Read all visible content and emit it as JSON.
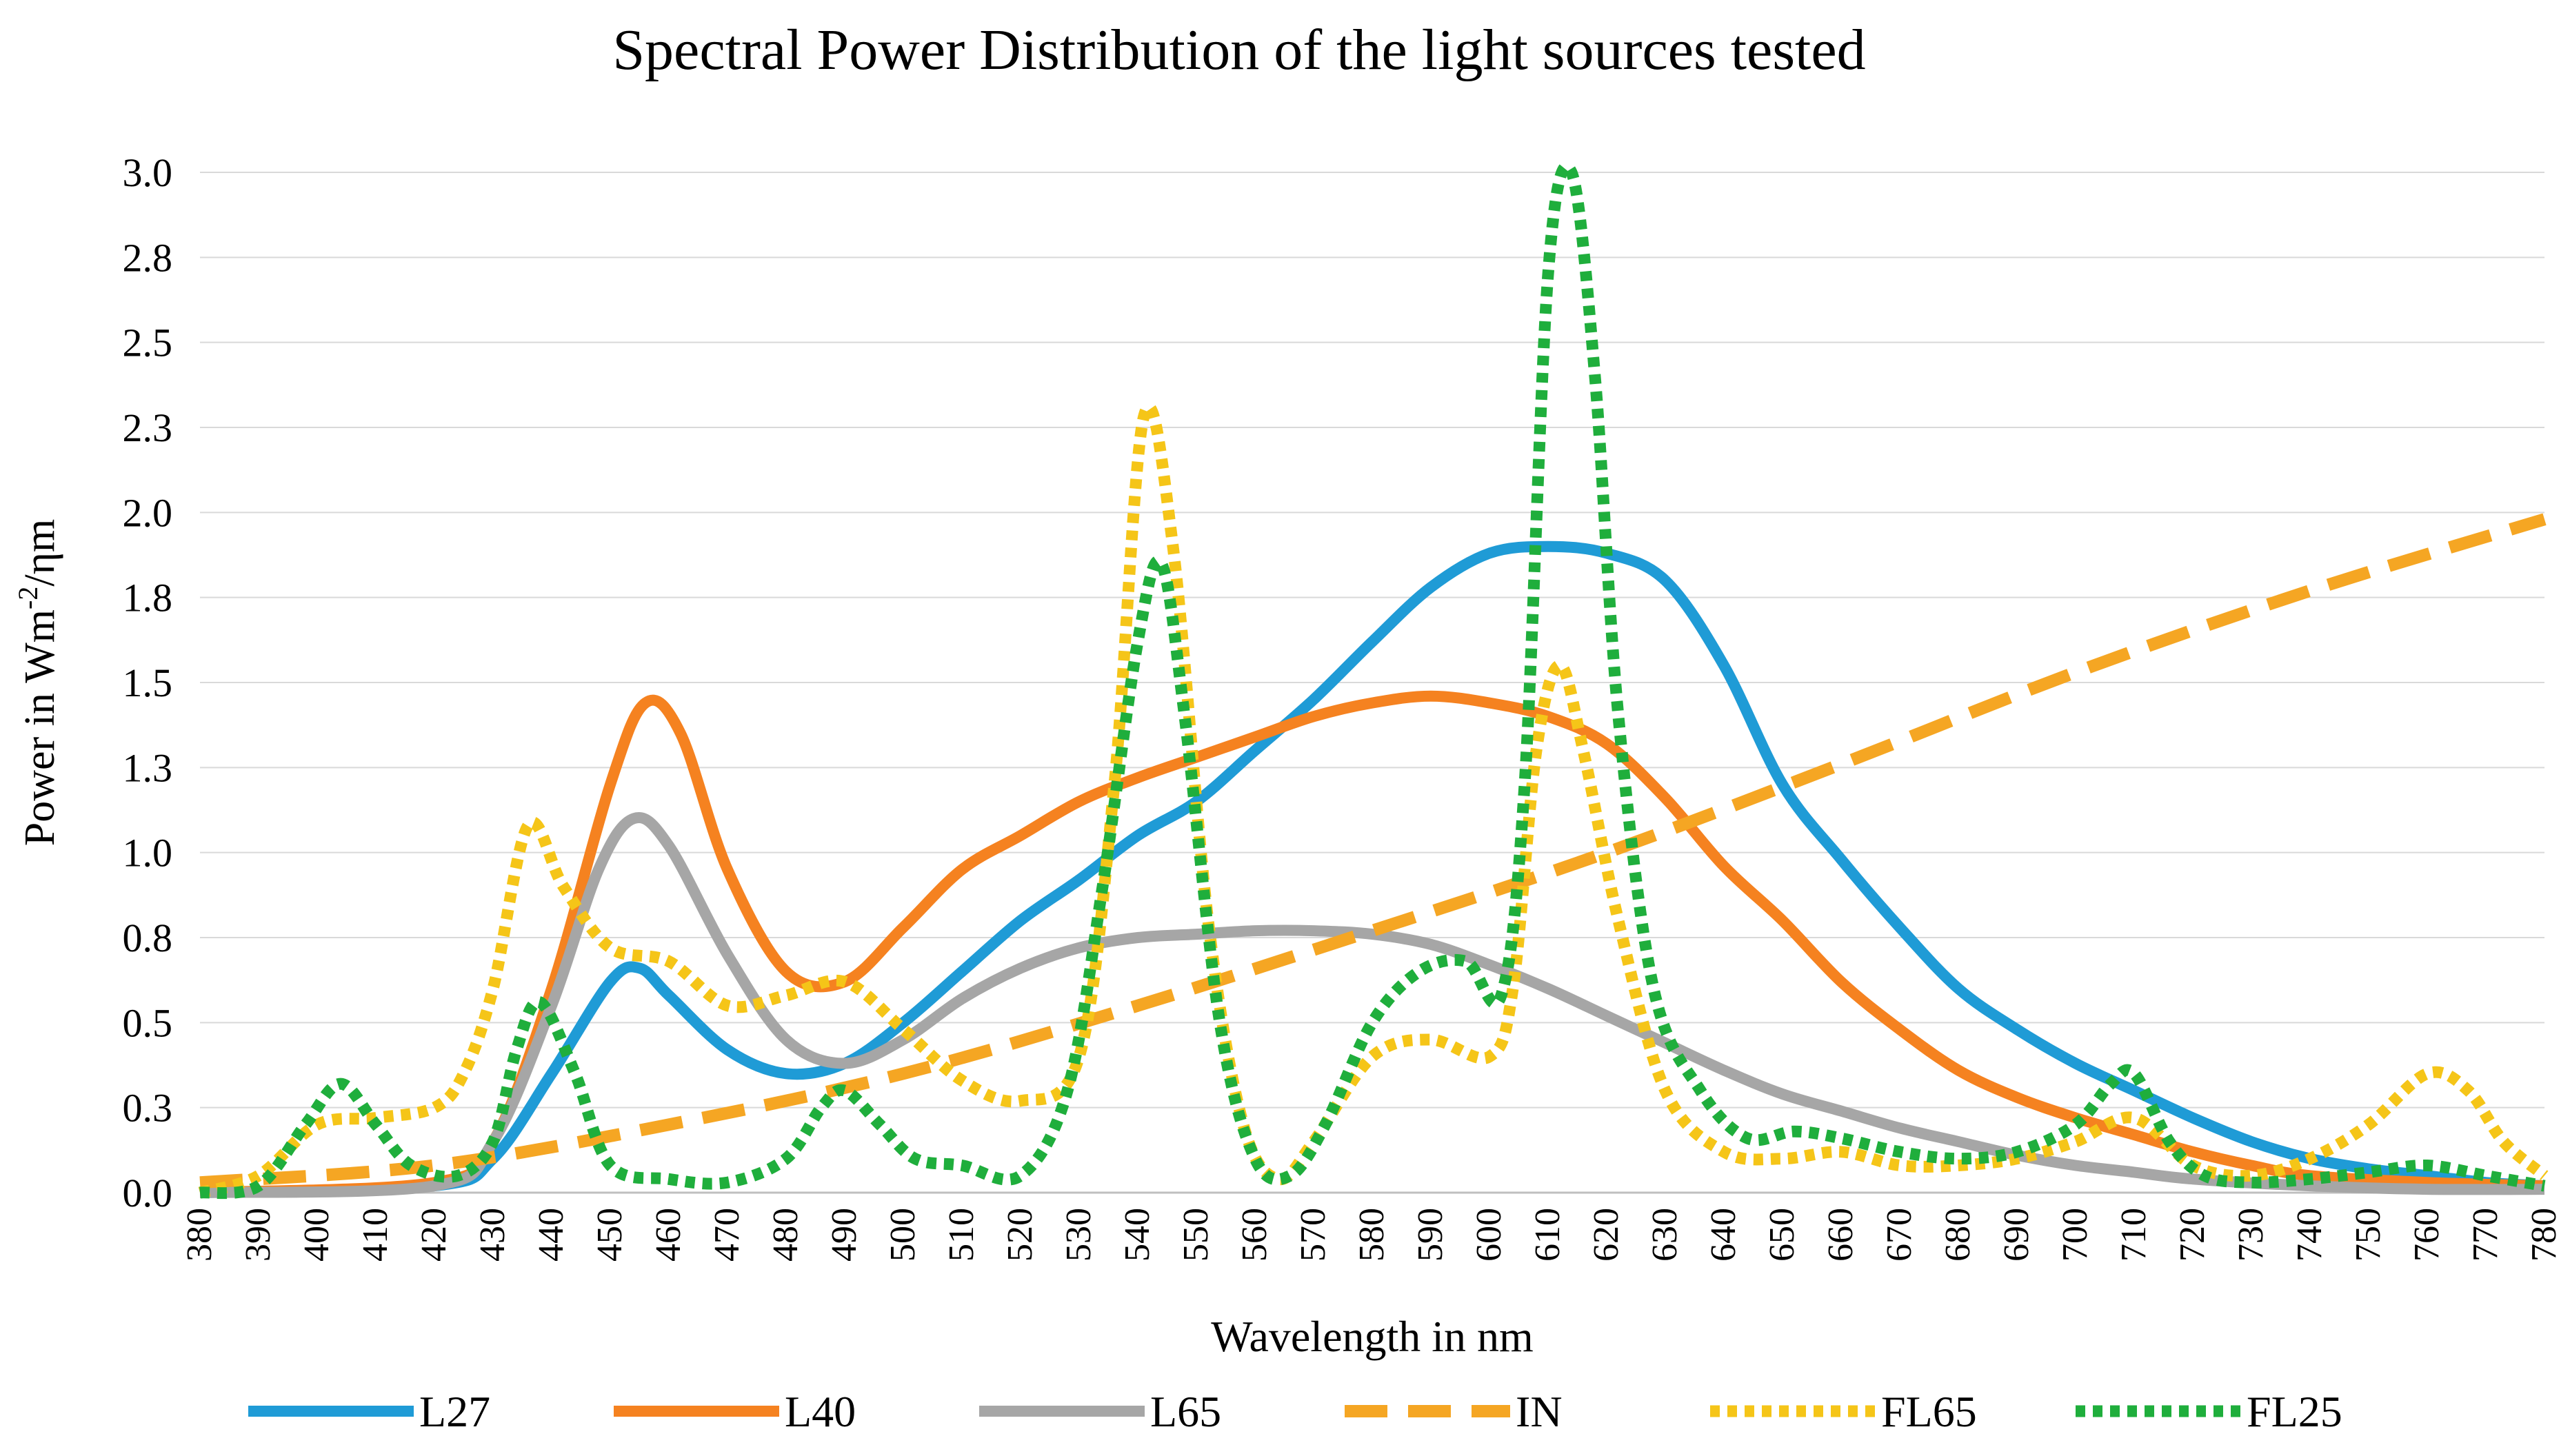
{
  "chart_data": {
    "type": "line",
    "title": "Spectral Power Distribution of the light sources tested",
    "xlabel": "Wavelength in nm",
    "ylabel_parts": {
      "prefix": "Power in Wm",
      "superscript": "-2",
      "suffix": "/ηm"
    },
    "xlim": [
      380,
      780
    ],
    "ylim": [
      0,
      3.0
    ],
    "x_ticks": [
      380,
      390,
      400,
      410,
      420,
      430,
      440,
      450,
      460,
      470,
      480,
      490,
      500,
      510,
      520,
      530,
      540,
      550,
      560,
      570,
      580,
      590,
      600,
      610,
      620,
      630,
      640,
      650,
      660,
      670,
      680,
      690,
      700,
      710,
      720,
      730,
      740,
      750,
      760,
      770,
      780
    ],
    "y_tick_values": [
      0,
      0.25,
      0.5,
      0.75,
      1.0,
      1.25,
      1.5,
      1.75,
      2.0,
      2.25,
      2.5,
      2.75,
      3.0
    ],
    "y_tick_labels": [
      "0.0",
      "0.3",
      "0.5",
      "0.8",
      "1.0",
      "1.3",
      "1.5",
      "1.8",
      "2.0",
      "2.3",
      "2.5",
      "2.8",
      "3.0"
    ],
    "grid": true,
    "legend_position": "bottom",
    "series": [
      {
        "name": "L27",
        "color": "#1f9bd6",
        "dash": "solid",
        "points": [
          [
            380,
            0
          ],
          [
            420,
            0.02
          ],
          [
            430,
            0.1
          ],
          [
            440,
            0.35
          ],
          [
            450,
            0.62
          ],
          [
            455,
            0.66
          ],
          [
            460,
            0.58
          ],
          [
            470,
            0.42
          ],
          [
            480,
            0.35
          ],
          [
            490,
            0.38
          ],
          [
            500,
            0.5
          ],
          [
            510,
            0.65
          ],
          [
            520,
            0.8
          ],
          [
            530,
            0.92
          ],
          [
            540,
            1.05
          ],
          [
            550,
            1.15
          ],
          [
            560,
            1.3
          ],
          [
            570,
            1.45
          ],
          [
            580,
            1.62
          ],
          [
            590,
            1.78
          ],
          [
            600,
            1.88
          ],
          [
            610,
            1.9
          ],
          [
            620,
            1.88
          ],
          [
            630,
            1.8
          ],
          [
            640,
            1.55
          ],
          [
            650,
            1.2
          ],
          [
            660,
            0.98
          ],
          [
            670,
            0.78
          ],
          [
            680,
            0.6
          ],
          [
            690,
            0.48
          ],
          [
            700,
            0.38
          ],
          [
            710,
            0.3
          ],
          [
            720,
            0.22
          ],
          [
            730,
            0.15
          ],
          [
            740,
            0.1
          ],
          [
            750,
            0.07
          ],
          [
            760,
            0.05
          ],
          [
            770,
            0.03
          ],
          [
            780,
            0.02
          ]
        ]
      },
      {
        "name": "L40",
        "color": "#f58220",
        "dash": "solid",
        "points": [
          [
            380,
            0
          ],
          [
            420,
            0.03
          ],
          [
            430,
            0.15
          ],
          [
            440,
            0.6
          ],
          [
            450,
            1.2
          ],
          [
            456,
            1.44
          ],
          [
            462,
            1.35
          ],
          [
            470,
            0.95
          ],
          [
            480,
            0.65
          ],
          [
            490,
            0.62
          ],
          [
            500,
            0.78
          ],
          [
            510,
            0.95
          ],
          [
            520,
            1.05
          ],
          [
            530,
            1.15
          ],
          [
            540,
            1.22
          ],
          [
            550,
            1.28
          ],
          [
            560,
            1.34
          ],
          [
            570,
            1.4
          ],
          [
            580,
            1.44
          ],
          [
            590,
            1.46
          ],
          [
            600,
            1.44
          ],
          [
            610,
            1.4
          ],
          [
            620,
            1.32
          ],
          [
            630,
            1.16
          ],
          [
            640,
            0.96
          ],
          [
            650,
            0.8
          ],
          [
            660,
            0.62
          ],
          [
            670,
            0.48
          ],
          [
            680,
            0.36
          ],
          [
            690,
            0.28
          ],
          [
            700,
            0.22
          ],
          [
            710,
            0.17
          ],
          [
            720,
            0.12
          ],
          [
            730,
            0.08
          ],
          [
            740,
            0.05
          ],
          [
            760,
            0.03
          ],
          [
            780,
            0.02
          ]
        ]
      },
      {
        "name": "L65",
        "color": "#a6a6a6",
        "dash": "solid",
        "points": [
          [
            380,
            0
          ],
          [
            420,
            0.02
          ],
          [
            430,
            0.15
          ],
          [
            440,
            0.55
          ],
          [
            448,
            0.95
          ],
          [
            454,
            1.1
          ],
          [
            460,
            1.02
          ],
          [
            470,
            0.7
          ],
          [
            480,
            0.45
          ],
          [
            490,
            0.38
          ],
          [
            500,
            0.45
          ],
          [
            510,
            0.57
          ],
          [
            520,
            0.66
          ],
          [
            530,
            0.72
          ],
          [
            540,
            0.75
          ],
          [
            550,
            0.76
          ],
          [
            560,
            0.77
          ],
          [
            570,
            0.77
          ],
          [
            580,
            0.76
          ],
          [
            590,
            0.73
          ],
          [
            600,
            0.67
          ],
          [
            610,
            0.6
          ],
          [
            620,
            0.52
          ],
          [
            630,
            0.44
          ],
          [
            640,
            0.36
          ],
          [
            650,
            0.29
          ],
          [
            660,
            0.24
          ],
          [
            670,
            0.19
          ],
          [
            680,
            0.15
          ],
          [
            690,
            0.11
          ],
          [
            700,
            0.08
          ],
          [
            710,
            0.06
          ],
          [
            720,
            0.04
          ],
          [
            740,
            0.02
          ],
          [
            760,
            0.01
          ],
          [
            780,
            0.01
          ]
        ]
      },
      {
        "name": "IN",
        "color": "#f5a623",
        "dash": "long",
        "points": [
          [
            380,
            0.03
          ],
          [
            420,
            0.08
          ],
          [
            460,
            0.2
          ],
          [
            500,
            0.35
          ],
          [
            540,
            0.55
          ],
          [
            580,
            0.77
          ],
          [
            620,
            1.0
          ],
          [
            660,
            1.26
          ],
          [
            700,
            1.53
          ],
          [
            740,
            1.77
          ],
          [
            780,
            1.98
          ]
        ]
      },
      {
        "name": "FL65",
        "color": "#f5c518",
        "dash": "dotted",
        "points": [
          [
            380,
            0
          ],
          [
            390,
            0.05
          ],
          [
            400,
            0.2
          ],
          [
            410,
            0.22
          ],
          [
            420,
            0.25
          ],
          [
            425,
            0.35
          ],
          [
            430,
            0.6
          ],
          [
            436,
            1.08
          ],
          [
            442,
            0.9
          ],
          [
            450,
            0.72
          ],
          [
            460,
            0.68
          ],
          [
            470,
            0.55
          ],
          [
            480,
            0.58
          ],
          [
            490,
            0.62
          ],
          [
            500,
            0.48
          ],
          [
            510,
            0.33
          ],
          [
            520,
            0.27
          ],
          [
            530,
            0.4
          ],
          [
            536,
            1.2
          ],
          [
            541,
            2.28
          ],
          [
            546,
            1.9
          ],
          [
            552,
            0.8
          ],
          [
            558,
            0.2
          ],
          [
            564,
            0.04
          ],
          [
            570,
            0.15
          ],
          [
            580,
            0.4
          ],
          [
            590,
            0.45
          ],
          [
            600,
            0.4
          ],
          [
            604,
            0.6
          ],
          [
            608,
            1.3
          ],
          [
            612,
            1.55
          ],
          [
            616,
            1.3
          ],
          [
            622,
            0.8
          ],
          [
            630,
            0.3
          ],
          [
            640,
            0.12
          ],
          [
            650,
            0.1
          ],
          [
            660,
            0.12
          ],
          [
            670,
            0.08
          ],
          [
            680,
            0.08
          ],
          [
            690,
            0.1
          ],
          [
            700,
            0.15
          ],
          [
            710,
            0.22
          ],
          [
            720,
            0.08
          ],
          [
            730,
            0.05
          ],
          [
            740,
            0.1
          ],
          [
            750,
            0.2
          ],
          [
            760,
            0.35
          ],
          [
            767,
            0.3
          ],
          [
            773,
            0.15
          ],
          [
            780,
            0.05
          ]
        ]
      },
      {
        "name": "FL25",
        "color": "#1fae3c",
        "dash": "dotted",
        "points": [
          [
            380,
            0
          ],
          [
            390,
            0.02
          ],
          [
            398,
            0.2
          ],
          [
            404,
            0.32
          ],
          [
            410,
            0.2
          ],
          [
            416,
            0.08
          ],
          [
            424,
            0.05
          ],
          [
            430,
            0.15
          ],
          [
            434,
            0.42
          ],
          [
            438,
            0.56
          ],
          [
            444,
            0.35
          ],
          [
            450,
            0.08
          ],
          [
            460,
            0.04
          ],
          [
            470,
            0.03
          ],
          [
            480,
            0.1
          ],
          [
            486,
            0.25
          ],
          [
            490,
            0.3
          ],
          [
            496,
            0.2
          ],
          [
            502,
            0.1
          ],
          [
            510,
            0.08
          ],
          [
            520,
            0.05
          ],
          [
            528,
            0.3
          ],
          [
            534,
            0.9
          ],
          [
            540,
            1.62
          ],
          [
            544,
            1.85
          ],
          [
            548,
            1.4
          ],
          [
            554,
            0.5
          ],
          [
            560,
            0.1
          ],
          [
            566,
            0.05
          ],
          [
            572,
            0.2
          ],
          [
            580,
            0.5
          ],
          [
            588,
            0.65
          ],
          [
            596,
            0.68
          ],
          [
            602,
            0.58
          ],
          [
            606,
            1.2
          ],
          [
            610,
            2.7
          ],
          [
            614,
            3.0
          ],
          [
            618,
            2.4
          ],
          [
            622,
            1.4
          ],
          [
            628,
            0.6
          ],
          [
            636,
            0.3
          ],
          [
            644,
            0.16
          ],
          [
            652,
            0.18
          ],
          [
            660,
            0.16
          ],
          [
            670,
            0.12
          ],
          [
            680,
            0.1
          ],
          [
            690,
            0.12
          ],
          [
            700,
            0.2
          ],
          [
            706,
            0.32
          ],
          [
            710,
            0.35
          ],
          [
            716,
            0.15
          ],
          [
            722,
            0.05
          ],
          [
            730,
            0.03
          ],
          [
            740,
            0.04
          ],
          [
            750,
            0.06
          ],
          [
            760,
            0.08
          ],
          [
            770,
            0.05
          ],
          [
            780,
            0.02
          ]
        ]
      }
    ]
  }
}
